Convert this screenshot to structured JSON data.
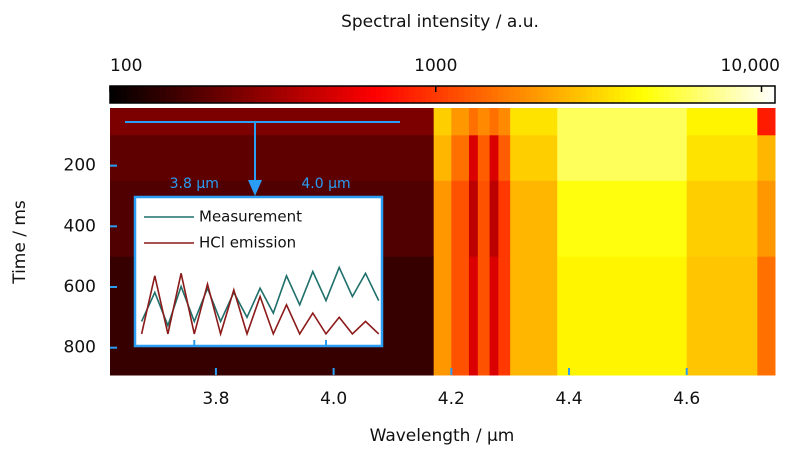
{
  "chart_data": [
    {
      "type": "heatmap",
      "title": "Spectral intensity / a.u.",
      "x_label": "Wavelength / µm",
      "y_label": "Time / ms",
      "colormap": "hot",
      "color_scale": "log",
      "clim": [
        100,
        11000
      ],
      "cticks": [
        100,
        1000,
        {
          "value": 10000,
          "label": "10,000"
        }
      ],
      "xlim": [
        3.62,
        4.75
      ],
      "xticks": [
        3.8,
        {
          "value": 4,
          "label": "4.0"
        },
        4.2,
        4.4,
        4.6
      ],
      "ylim": [
        890,
        10
      ],
      "yticks": [
        200,
        400,
        600,
        800
      ],
      "x_edges": [
        3.62,
        4.17,
        4.2,
        4.23,
        4.245,
        4.265,
        4.28,
        4.3,
        4.38,
        4.6,
        4.72,
        4.75
      ],
      "y_edges": [
        10,
        100,
        250,
        500,
        890
      ],
      "values": [
        [
          250,
          3000,
          2000,
          1500,
          1800,
          1500,
          1800,
          3500,
          6000,
          4000,
          800
        ],
        [
          200,
          2500,
          1500,
          500,
          1300,
          500,
          1300,
          3000,
          6000,
          3500,
          2500
        ],
        [
          180,
          2000,
          1200,
          400,
          1200,
          400,
          1000,
          2500,
          4500,
          3000,
          2000
        ],
        [
          150,
          2000,
          1200,
          500,
          1200,
          500,
          1000,
          2500,
          4000,
          2800,
          1500
        ]
      ]
    },
    {
      "type": "line",
      "xlim": [
        3.71,
        4.085
      ],
      "ylim": [
        0,
        1
      ],
      "xticks": [
        {
          "value": 3.8,
          "label": "3.8 µm"
        },
        {
          "value": 4.0,
          "label": "4.0 µm"
        }
      ],
      "x": [
        3.72,
        3.74,
        3.76,
        3.78,
        3.8,
        3.82,
        3.84,
        3.86,
        3.88,
        3.9,
        3.92,
        3.94,
        3.96,
        3.98,
        4.0,
        4.02,
        4.04,
        4.06,
        4.08
      ],
      "series": [
        {
          "name": "Measurement",
          "color": "#1f6f6b",
          "values": [
            0.2,
            0.55,
            0.15,
            0.62,
            0.2,
            0.6,
            0.2,
            0.55,
            0.25,
            0.6,
            0.3,
            0.75,
            0.4,
            0.8,
            0.45,
            0.85,
            0.5,
            0.78,
            0.45
          ]
        },
        {
          "name": "HCl emission",
          "color": "#8b1a1a",
          "values": [
            0.05,
            0.75,
            0.05,
            0.78,
            0.05,
            0.65,
            0.05,
            0.58,
            0.05,
            0.5,
            0.05,
            0.4,
            0.05,
            0.3,
            0.05,
            0.25,
            0.05,
            0.2,
            0.05
          ]
        }
      ]
    }
  ]
}
